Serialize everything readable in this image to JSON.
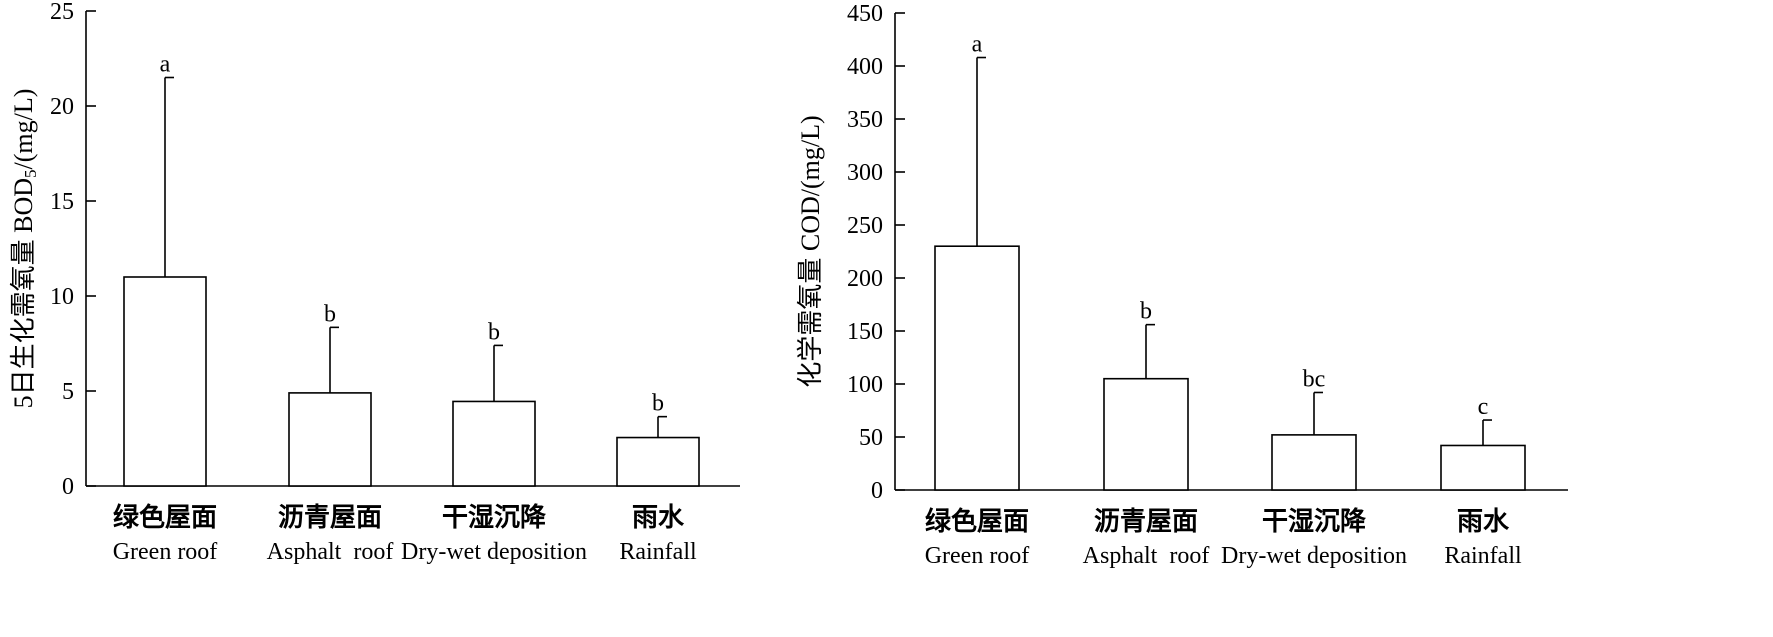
{
  "chart_data": [
    {
      "type": "bar",
      "categories": [
        {
          "cn": "绿色屋面",
          "en": "Green roof"
        },
        {
          "cn": "沥青屋面",
          "en": "Asphalt  roof"
        },
        {
          "cn": "干湿沉降",
          "en": "Dry-wet deposition"
        },
        {
          "cn": "雨水",
          "en": "Rainfall"
        }
      ],
      "series": [
        {
          "values": [
            11.0,
            4.9,
            4.45,
            2.55
          ],
          "error_upper": [
            21.5,
            8.35,
            7.4,
            3.65
          ]
        }
      ],
      "significance": [
        "a",
        "b",
        "b",
        "b"
      ],
      "ylabel": "5日生化需氧量 BOD5/(mg/L)",
      "ylabel_parts": {
        "main": "5日生化需氧量 BOD",
        "sub": "5",
        "tail": "/(mg/L)"
      },
      "ylim": [
        0,
        25
      ],
      "yticks": [
        0,
        5,
        10,
        15,
        20,
        25
      ],
      "grid": false
    },
    {
      "type": "bar",
      "categories": [
        {
          "cn": "绿色屋面",
          "en": "Green roof"
        },
        {
          "cn": "沥青屋面",
          "en": "Asphalt  roof"
        },
        {
          "cn": "干湿沉降",
          "en": "Dry-wet deposition"
        },
        {
          "cn": "雨水",
          "en": "Rainfall"
        }
      ],
      "series": [
        {
          "values": [
            230,
            105,
            52,
            42
          ],
          "error_upper": [
            408,
            156,
            92,
            66
          ]
        }
      ],
      "significance": [
        "a",
        "b",
        "bc",
        "c"
      ],
      "ylabel": "化学需氧量 COD/(mg/L)",
      "ylim": [
        0,
        450
      ],
      "yticks": [
        0,
        50,
        100,
        150,
        200,
        250,
        300,
        350,
        400,
        450
      ],
      "grid": false
    }
  ]
}
